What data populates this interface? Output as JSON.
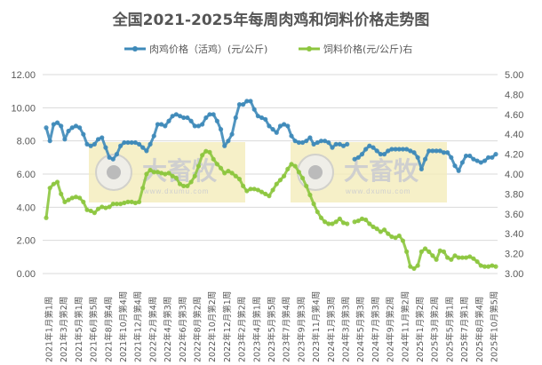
{
  "chart_data": {
    "type": "line",
    "title": "全国2021-2025年每周肉鸡和饲料价格走势图",
    "x_tick_labels": [
      "2021年1月第1周",
      "2021年3月第2周",
      "2021年5月第1周",
      "2021年6月第5周",
      "2021年8月第4周",
      "2021年10月第4周",
      "2021年12月第4周",
      "2022年2月第4周",
      "2022年4月第3周",
      "2022年6月第3周",
      "2022年8月第2周",
      "2022年10月第2周",
      "2022年12月第1周",
      "2023年2月第2周",
      "2023年4月第1周",
      "2023年5月第5周",
      "2023年7月第4周",
      "2023年9月第3周",
      "2023年11月第4周",
      "2024年1月第3周",
      "2024年3月第3周",
      "2024年5月第3周",
      "2024年7月第3周",
      "2024年9月第2周",
      "2024年11月第2周",
      "2025年1月第2周",
      "2025年3月第2周",
      "2025年5月第1周",
      "2025年7月第1周",
      "2025年8月第4周",
      "2025年10月第5周"
    ],
    "y_left": {
      "min": 0,
      "max": 12,
      "step": 2,
      "tick_decimals": 2
    },
    "y_right": {
      "min": 3,
      "max": 5,
      "step": 0.2,
      "tick_decimals": 2
    },
    "grid": true,
    "legend_position": "top",
    "series": [
      {
        "name": "肉鸡价格（活鸡）(元/公斤)",
        "axis": "left",
        "color": "#3E8AB9",
        "values": [
          8.8,
          8.0,
          9.0,
          9.1,
          8.9,
          8.1,
          8.6,
          8.8,
          8.9,
          8.8,
          8.4,
          7.8,
          7.7,
          7.8,
          8.1,
          8.2,
          7.6,
          7.0,
          6.9,
          7.2,
          7.7,
          7.9,
          7.9,
          7.9,
          7.9,
          7.8,
          7.6,
          7.4,
          7.8,
          8.3,
          9.0,
          9.0,
          8.9,
          9.2,
          9.5,
          9.6,
          9.5,
          9.4,
          9.4,
          9.2,
          8.9,
          8.9,
          9.0,
          9.4,
          9.6,
          9.6,
          9.2,
          8.7,
          7.7,
          8.0,
          8.4,
          9.4,
          10.2,
          10.2,
          10.4,
          10.4,
          9.9,
          9.5,
          9.4,
          9.3,
          8.9,
          8.7,
          8.5,
          8.9,
          9.0,
          8.9,
          8.3,
          8.0,
          7.9,
          7.9,
          8.0,
          8.2,
          7.8,
          7.9,
          8.0,
          8.0,
          7.9,
          7.6,
          7.8,
          7.8,
          7.7,
          7.8,
          null,
          6.9,
          7.0,
          7.2,
          7.5,
          7.7,
          7.6,
          7.4,
          7.2,
          7.2,
          7.4,
          7.5,
          7.5,
          7.5,
          7.5,
          7.5,
          7.4,
          7.3,
          7.0,
          6.3,
          6.9,
          7.4,
          7.4,
          7.4,
          7.4,
          7.3,
          7.3,
          7.0,
          6.5,
          6.2,
          6.7,
          7.1,
          7.1,
          6.9,
          6.8,
          6.7,
          6.8,
          7.0,
          7.0,
          7.2
        ]
      },
      {
        "name": "饲料价格(元/公斤)右",
        "axis": "right",
        "color": "#8DC63F",
        "values": [
          3.56,
          3.86,
          3.9,
          3.92,
          3.8,
          3.72,
          3.74,
          3.76,
          3.77,
          3.76,
          3.72,
          3.64,
          3.63,
          3.61,
          3.65,
          3.67,
          3.66,
          3.67,
          3.7,
          3.7,
          3.7,
          3.71,
          3.72,
          3.72,
          3.71,
          3.72,
          3.86,
          4.0,
          4.04,
          4.02,
          4.02,
          4.01,
          4.0,
          4.01,
          3.98,
          3.96,
          3.9,
          3.88,
          3.88,
          3.92,
          3.98,
          4.08,
          4.19,
          4.23,
          4.22,
          4.15,
          4.1,
          4.06,
          4.01,
          4.03,
          4.01,
          3.98,
          3.95,
          3.88,
          3.83,
          3.85,
          3.85,
          3.84,
          3.82,
          3.8,
          3.78,
          3.84,
          3.9,
          3.94,
          3.98,
          4.05,
          4.1,
          4.08,
          4.02,
          3.96,
          3.88,
          3.79,
          3.7,
          3.62,
          3.56,
          3.52,
          3.5,
          3.5,
          3.52,
          3.55,
          3.51,
          3.5,
          null,
          3.52,
          3.53,
          3.55,
          3.54,
          3.5,
          3.47,
          3.45,
          3.42,
          3.44,
          3.4,
          3.37,
          3.36,
          3.38,
          3.33,
          3.22,
          3.07,
          3.05,
          3.08,
          3.22,
          3.25,
          3.22,
          3.18,
          3.14,
          3.23,
          3.22,
          3.16,
          3.14,
          3.18,
          3.16,
          3.16,
          3.16,
          3.17,
          3.15,
          3.12,
          3.08,
          3.07,
          3.07,
          3.08,
          3.07
        ]
      }
    ]
  },
  "watermark": {
    "logo_text": "大畜牧",
    "url_text": "www.dxumu.com",
    "box_color": "#F3EBB5"
  }
}
